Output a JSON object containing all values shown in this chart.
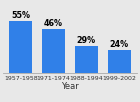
{
  "categories": [
    "1957-1958",
    "1971-1974",
    "1988-1994",
    "1999-2002"
  ],
  "values": [
    55,
    46,
    29,
    24
  ],
  "bar_color": "#3080e8",
  "labels": [
    "55%",
    "46%",
    "29%",
    "24%"
  ],
  "xlabel": "Year",
  "ylim": [
    0,
    68
  ],
  "background_color": "#e8e8e8",
  "label_fontsize": 5.8,
  "xlabel_fontsize": 6.0,
  "tick_fontsize": 4.5,
  "bar_width": 0.7
}
